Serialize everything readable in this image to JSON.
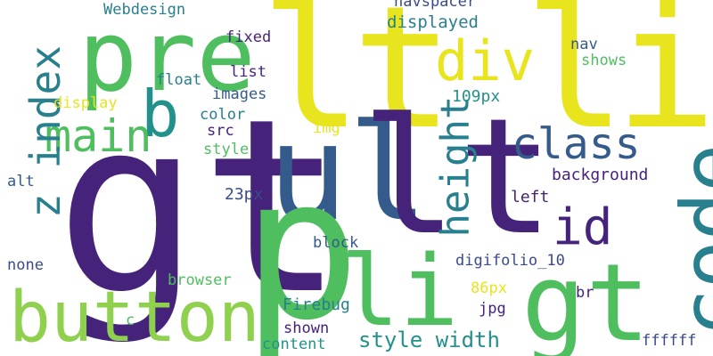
{
  "words": {
    "gt1": "gt",
    "lt_li_l1": "l",
    "lt_li_t": "t",
    "lt_li_l2": "l",
    "lt_li_i": "i",
    "ul": "ul",
    "lt2": "lt",
    "p": "p",
    "li2": "li",
    "gt2": "gt",
    "pre": "pre",
    "button": "button",
    "code": "code",
    "div": "div",
    "b": "b",
    "main": "main",
    "class": "class",
    "z_index": "z index",
    "height": "height",
    "id": "id",
    "style_width": "style width",
    "webdesign": "Webdesign",
    "navspacer": "navspacer",
    "displayed": "displayed",
    "fixed": "fixed",
    "nav": "nav",
    "shows": "shows",
    "list": "list",
    "float": "float",
    "images": "images",
    "px109": "109px",
    "display": "display",
    "color": "color",
    "img": "img",
    "src": "src",
    "style": "style",
    "background": "background",
    "alt": "alt",
    "px23": "23px",
    "left": "left",
    "block": "block",
    "digifolio": "digifolio_10",
    "none": "none",
    "browser": "browser",
    "px86": "86px",
    "br": "br",
    "firebug": "Firebug",
    "jpg": "jpg",
    "c": "c",
    "shown": "shown",
    "content": "content",
    "ffffff": "ffffff"
  },
  "colors": {
    "background": "#ffffff",
    "purple": "#46237a",
    "indigo": "#3b4a8a",
    "blue": "#345b8c",
    "teal": "#287f8e",
    "cyan": "#23918b",
    "green": "#4fbe5f",
    "lime": "#8fd14f",
    "yellow": "#e8e41d"
  }
}
